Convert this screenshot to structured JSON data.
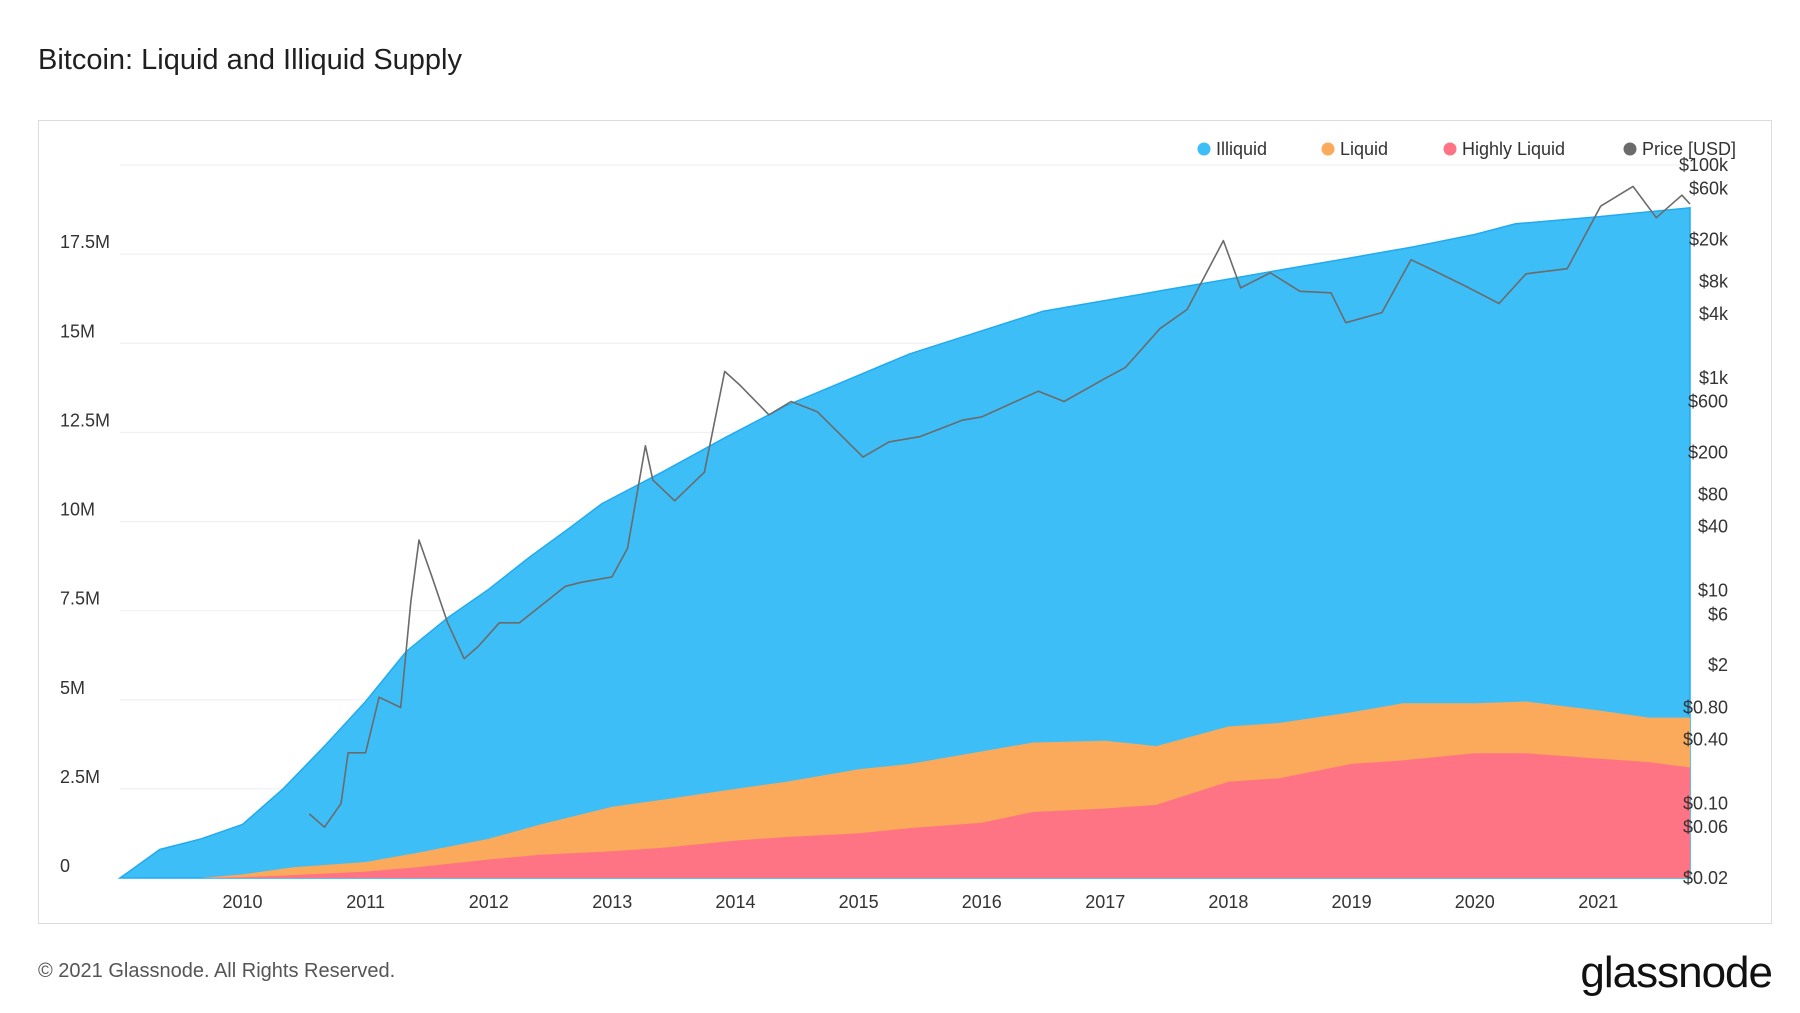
{
  "title": "Bitcoin: Liquid and Illiquid Supply",
  "footer": "© 2021 Glassnode. All Rights Reserved.",
  "brand": "glassnode",
  "watermark": "glassnode",
  "colors": {
    "illiquid": "#3dbef7",
    "illiquid_line": "#22aaf0",
    "liquid": "#fba95a",
    "highly_liquid": "#fe7484",
    "price": "#6b6b6b",
    "grid": "#eeeeee"
  },
  "chart_data": {
    "type": "area",
    "title": "Bitcoin: Liquid and Illiquid Supply",
    "x_axis": {
      "type": "date",
      "range": [
        "2009-01-03",
        "2021-09-30"
      ],
      "ticks": [
        "2010",
        "2011",
        "2012",
        "2013",
        "2014",
        "2015",
        "2016",
        "2017",
        "2018",
        "2019",
        "2020",
        "2021"
      ]
    },
    "y_left": {
      "range": [
        0,
        20000000
      ],
      "ticks": [
        {
          "value": 0,
          "label": "0"
        },
        {
          "value": 2500000,
          "label": "2.5M"
        },
        {
          "value": 5000000,
          "label": "5M"
        },
        {
          "value": 7500000,
          "label": "7.5M"
        },
        {
          "value": 10000000,
          "label": "10M"
        },
        {
          "value": 12500000,
          "label": "12.5M"
        },
        {
          "value": 15000000,
          "label": "15M"
        },
        {
          "value": 17500000,
          "label": "17.5M"
        }
      ]
    },
    "y_right": {
      "scale": "log",
      "range": [
        0.02,
        100000
      ],
      "ticks": [
        {
          "value": 0.02,
          "label": "$0.02"
        },
        {
          "value": 0.06,
          "label": "$0.06"
        },
        {
          "value": 0.1,
          "label": "$0.10"
        },
        {
          "value": 0.4,
          "label": "$0.40"
        },
        {
          "value": 0.8,
          "label": "$0.80"
        },
        {
          "value": 2,
          "label": "$2"
        },
        {
          "value": 6,
          "label": "$6"
        },
        {
          "value": 10,
          "label": "$10"
        },
        {
          "value": 40,
          "label": "$40"
        },
        {
          "value": 80,
          "label": "$80"
        },
        {
          "value": 200,
          "label": "$200"
        },
        {
          "value": 600,
          "label": "$600"
        },
        {
          "value": 1000,
          "label": "$1k"
        },
        {
          "value": 4000,
          "label": "$4k"
        },
        {
          "value": 8000,
          "label": "$8k"
        },
        {
          "value": 20000,
          "label": "$20k"
        },
        {
          "value": 60000,
          "label": "$60k"
        },
        {
          "value": 100000,
          "label": "$100k"
        }
      ]
    },
    "legend": {
      "placement": "top-right",
      "entries": [
        "Illiquid",
        "Liquid",
        "Highly Liquid",
        "Price [USD]"
      ]
    },
    "series": [
      {
        "name": "Illiquid",
        "stacked_total": true,
        "x": [
          "2009-01-03",
          "2009-05-01",
          "2009-09-01",
          "2010-01-01",
          "2010-05-01",
          "2010-09-01",
          "2011-01-01",
          "2011-05-01",
          "2011-09-01",
          "2012-01-01",
          "2012-05-01",
          "2012-09-01",
          "2012-12-01",
          "2013-06-01",
          "2013-12-01",
          "2014-06-01",
          "2015-01-01",
          "2015-06-01",
          "2016-01-01",
          "2016-07-01",
          "2017-01-01",
          "2017-07-01",
          "2018-01-01",
          "2018-07-01",
          "2019-01-01",
          "2019-07-01",
          "2020-01-01",
          "2020-05-01",
          "2021-01-01",
          "2021-09-30"
        ],
        "values": [
          0,
          800000,
          1100000,
          1500000,
          2500000,
          3700000,
          4950000,
          6350000,
          7300000,
          8100000,
          9000000,
          9850000,
          10500000,
          11400000,
          12350000,
          13250000,
          14100000,
          14700000,
          15350000,
          15900000,
          16200000,
          16500000,
          16800000,
          17100000,
          17400000,
          17700000,
          18050000,
          18350000,
          18550000,
          18800000
        ]
      },
      {
        "name": "Liquid",
        "stacked_total": true,
        "x": [
          "2009-01-03",
          "2009-09-01",
          "2010-01-01",
          "2010-06-01",
          "2011-01-01",
          "2011-06-01",
          "2012-01-01",
          "2012-06-01",
          "2013-01-01",
          "2013-06-01",
          "2014-01-01",
          "2014-06-01",
          "2015-01-01",
          "2015-06-01",
          "2016-01-01",
          "2016-06-01",
          "2017-01-01",
          "2017-06-01",
          "2018-01-01",
          "2018-06-01",
          "2019-01-01",
          "2019-06-01",
          "2020-01-01",
          "2020-06-01",
          "2021-01-01",
          "2021-06-01",
          "2021-09-30"
        ],
        "values": [
          0,
          0,
          100000,
          300000,
          450000,
          700000,
          1100000,
          1500000,
          2000000,
          2200000,
          2500000,
          2700000,
          3050000,
          3200000,
          3550000,
          3800000,
          3850000,
          3700000,
          4250000,
          4350000,
          4650000,
          4900000,
          4900000,
          4950000,
          4700000,
          4500000,
          4500000
        ]
      },
      {
        "name": "Highly Liquid",
        "stacked_total": true,
        "x": [
          "2009-01-03",
          "2009-09-01",
          "2010-01-01",
          "2010-06-01",
          "2011-01-01",
          "2011-06-01",
          "2012-01-01",
          "2012-06-01",
          "2013-01-01",
          "2013-06-01",
          "2014-01-01",
          "2014-06-01",
          "2015-01-01",
          "2015-06-01",
          "2016-01-01",
          "2016-06-01",
          "2017-01-01",
          "2017-06-01",
          "2018-01-01",
          "2018-06-01",
          "2019-01-01",
          "2019-06-01",
          "2020-01-01",
          "2020-06-01",
          "2021-01-01",
          "2021-06-01",
          "2021-09-30"
        ],
        "values": [
          0,
          0,
          20000,
          80000,
          180000,
          300000,
          520000,
          650000,
          750000,
          850000,
          1050000,
          1150000,
          1250000,
          1400000,
          1550000,
          1850000,
          1950000,
          2050000,
          2700000,
          2800000,
          3200000,
          3300000,
          3500000,
          3500000,
          3350000,
          3250000,
          3100000
        ]
      },
      {
        "name": "Price [USD]",
        "axis": "right",
        "x": [
          "2010-07-18",
          "2010-09-01",
          "2010-10-20",
          "2010-11-10",
          "2011-01-01",
          "2011-02-10",
          "2011-04-15",
          "2011-05-15",
          "2011-06-08",
          "2011-07-15",
          "2011-09-01",
          "2011-10-20",
          "2011-12-01",
          "2012-02-01",
          "2012-04-01",
          "2012-08-15",
          "2012-10-01",
          "2012-12-31",
          "2013-02-15",
          "2013-04-09",
          "2013-05-01",
          "2013-07-05",
          "2013-10-01",
          "2013-11-30",
          "2014-01-15",
          "2014-04-10",
          "2014-06-15",
          "2014-09-01",
          "2015-01-14",
          "2015-04-01",
          "2015-07-01",
          "2015-11-04",
          "2016-01-01",
          "2016-06-17",
          "2016-09-01",
          "2017-01-01",
          "2017-03-01",
          "2017-06-12",
          "2017-09-01",
          "2017-12-17",
          "2018-02-06",
          "2018-05-05",
          "2018-08-01",
          "2018-11-01",
          "2018-12-15",
          "2019-04-01",
          "2019-06-26",
          "2019-09-01",
          "2019-12-15",
          "2020-03-13",
          "2020-06-01",
          "2020-10-01",
          "2021-01-08",
          "2021-04-14",
          "2021-06-22",
          "2021-09-06",
          "2021-09-30"
        ],
        "values": [
          0.08,
          0.06,
          0.1,
          0.3,
          0.3,
          1.0,
          0.8,
          8,
          30,
          14,
          5,
          2.3,
          3,
          5,
          5,
          11,
          12,
          13.5,
          25,
          230,
          110,
          70,
          130,
          1150,
          850,
          450,
          600,
          480,
          180,
          250,
          280,
          400,
          430,
          750,
          600,
          990,
          1250,
          2900,
          4400,
          19500,
          7000,
          9700,
          6500,
          6300,
          3300,
          4100,
          12900,
          10200,
          7000,
          5000,
          9500,
          10600,
          41000,
          63000,
          32000,
          52000,
          43000
        ]
      }
    ]
  }
}
